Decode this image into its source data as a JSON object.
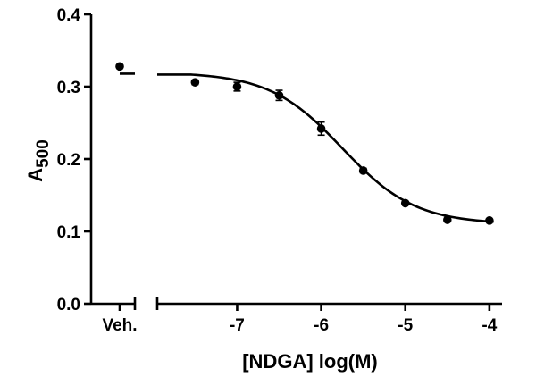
{
  "chart_data": {
    "type": "scatter",
    "xlabel": "[NDGA] log(M)",
    "ylabel_main": "A",
    "ylabel_sub": "500",
    "ylim": [
      0,
      0.4
    ],
    "y_ticks": [
      0.0,
      0.1,
      0.2,
      0.3,
      0.4
    ],
    "y_tick_labels": [
      "0.0",
      "0.1",
      "0.2",
      "0.3",
      "0.4"
    ],
    "xlim": [
      -7.95,
      -3.85
    ],
    "x_ticks": [
      -7,
      -6,
      -5,
      -4
    ],
    "x_tick_labels": [
      "-7",
      "-6",
      "-5",
      "-4"
    ],
    "vehicle": {
      "label": "Veh.",
      "value": 0.328,
      "fit_value": 0.318
    },
    "points": [
      {
        "x": -7.5,
        "y": 0.306,
        "err": 0.003
      },
      {
        "x": -7.0,
        "y": 0.3,
        "err": 0.006
      },
      {
        "x": -6.5,
        "y": 0.288,
        "err": 0.007
      },
      {
        "x": -6.0,
        "y": 0.242,
        "err": 0.009
      },
      {
        "x": -5.5,
        "y": 0.184,
        "err": 0.003
      },
      {
        "x": -5.0,
        "y": 0.139,
        "err": 0.002
      },
      {
        "x": -4.5,
        "y": 0.116,
        "err": 0.002
      },
      {
        "x": -4.0,
        "y": 0.115,
        "err": 0.002
      }
    ],
    "fit": {
      "top": 0.32,
      "bottom": 0.11,
      "log_ic50": -5.75,
      "hill": 1.0
    }
  }
}
